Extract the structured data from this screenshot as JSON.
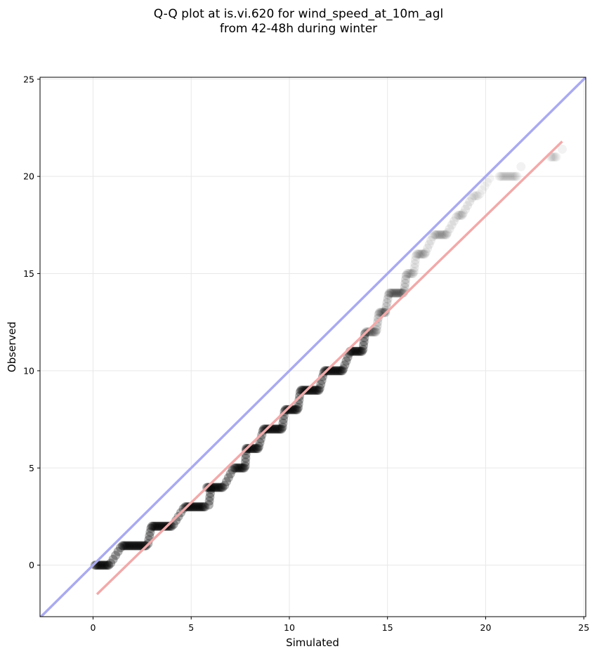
{
  "chart_data": {
    "type": "scatter",
    "title": [
      "Q-Q plot at is.vi.620 for wind_speed_at_10m_agl",
      "from 42-48h during winter"
    ],
    "xlabel": "Simulated",
    "ylabel": "Observed",
    "xlim": [
      -2.7,
      25.1
    ],
    "ylim": [
      -2.65,
      25.1
    ],
    "xticks": [
      0,
      5,
      10,
      15,
      20,
      25
    ],
    "yticks": [
      0,
      5,
      10,
      15,
      20,
      25
    ],
    "grid": true,
    "legend": "none",
    "colors": {
      "points": "#000000",
      "identity_line": "#aaaaee",
      "fit_line": "#f0aaaa",
      "grid": "#e8e8e8"
    },
    "identity_line": {
      "x": [
        -2.7,
        25.1
      ],
      "y": [
        -2.7,
        25.1
      ]
    },
    "fit_line": {
      "x": [
        0.2,
        23.9
      ],
      "y": [
        -1.5,
        21.8
      ]
    },
    "steps": [
      {
        "y": 0,
        "x_from": 0.1,
        "x_to": 0.8
      },
      {
        "y": 1,
        "x_from": 1.5,
        "x_to": 2.7
      },
      {
        "y": 2,
        "x_from": 3.0,
        "x_to": 4.0
      },
      {
        "y": 3,
        "x_from": 4.7,
        "x_to": 5.7
      },
      {
        "y": 4,
        "x_from": 5.8,
        "x_to": 6.6
      },
      {
        "y": 5,
        "x_from": 7.2,
        "x_to": 7.7
      },
      {
        "y": 6,
        "x_from": 7.8,
        "x_to": 8.4
      },
      {
        "y": 7,
        "x_from": 8.7,
        "x_to": 9.6
      },
      {
        "y": 8,
        "x_from": 9.8,
        "x_to": 10.4
      },
      {
        "y": 9,
        "x_from": 10.6,
        "x_to": 11.5
      },
      {
        "y": 10,
        "x_from": 11.8,
        "x_to": 12.7
      },
      {
        "y": 11,
        "x_from": 13.1,
        "x_to": 13.7
      },
      {
        "y": 12,
        "x_from": 13.9,
        "x_to": 14.4
      },
      {
        "y": 13,
        "x_from": 14.6,
        "x_to": 14.9
      },
      {
        "y": 14,
        "x_from": 15.1,
        "x_to": 15.8
      },
      {
        "y": 15,
        "x_from": 16.0,
        "x_to": 16.3
      },
      {
        "y": 16,
        "x_from": 16.5,
        "x_to": 16.9
      },
      {
        "y": 17,
        "x_from": 17.4,
        "x_to": 18.0
      },
      {
        "y": 18,
        "x_from": 18.6,
        "x_to": 18.8
      },
      {
        "y": 19,
        "x_from": 19.4,
        "x_to": 19.6
      },
      {
        "y": 20,
        "x_from": 20.7,
        "x_to": 21.6
      },
      {
        "y": 21,
        "x_from": 23.3,
        "x_to": 23.6
      }
    ],
    "transitions": [
      {
        "x_from": 0.9,
        "y_from": 0.1,
        "x_to": 1.4,
        "y_to": 0.9
      },
      {
        "x_from": 2.8,
        "y_from": 1.1,
        "x_to": 2.95,
        "y_to": 1.9
      },
      {
        "x_from": 4.1,
        "y_from": 2.1,
        "x_to": 4.6,
        "y_to": 2.9
      },
      {
        "x_from": 5.9,
        "y_from": 3.1,
        "x_to": 6.0,
        "y_to": 3.9
      },
      {
        "x_from": 6.7,
        "y_from": 4.1,
        "x_to": 7.1,
        "y_to": 4.9
      },
      {
        "x_from": 7.75,
        "y_from": 5.1,
        "x_to": 7.8,
        "y_to": 5.9
      },
      {
        "x_from": 8.45,
        "y_from": 6.1,
        "x_to": 8.65,
        "y_to": 6.9
      },
      {
        "x_from": 9.65,
        "y_from": 7.1,
        "x_to": 9.75,
        "y_to": 7.9
      },
      {
        "x_from": 10.45,
        "y_from": 8.1,
        "x_to": 10.55,
        "y_to": 8.9
      },
      {
        "x_from": 11.55,
        "y_from": 9.1,
        "x_to": 11.75,
        "y_to": 9.9
      },
      {
        "x_from": 12.75,
        "y_from": 10.1,
        "x_to": 13.05,
        "y_to": 10.9
      },
      {
        "x_from": 13.75,
        "y_from": 11.1,
        "x_to": 13.85,
        "y_to": 11.9
      },
      {
        "x_from": 14.45,
        "y_from": 12.1,
        "x_to": 14.55,
        "y_to": 12.9
      },
      {
        "x_from": 14.9,
        "y_from": 13.1,
        "x_to": 15.05,
        "y_to": 13.9
      },
      {
        "x_from": 15.85,
        "y_from": 14.1,
        "x_to": 15.95,
        "y_to": 14.9
      },
      {
        "x_from": 16.35,
        "y_from": 15.1,
        "x_to": 16.45,
        "y_to": 15.9
      },
      {
        "x_from": 16.95,
        "y_from": 16.1,
        "x_to": 17.3,
        "y_to": 16.9
      },
      {
        "x_from": 18.05,
        "y_from": 17.1,
        "x_to": 18.5,
        "y_to": 17.9
      },
      {
        "x_from": 18.85,
        "y_from": 18.1,
        "x_to": 19.3,
        "y_to": 18.9
      },
      {
        "x_from": 19.7,
        "y_from": 19.1,
        "x_to": 20.2,
        "y_to": 19.9
      }
    ],
    "extra_points": [
      {
        "x": 21.8,
        "y": 20.5
      },
      {
        "x": 23.9,
        "y": 21.4
      }
    ]
  }
}
